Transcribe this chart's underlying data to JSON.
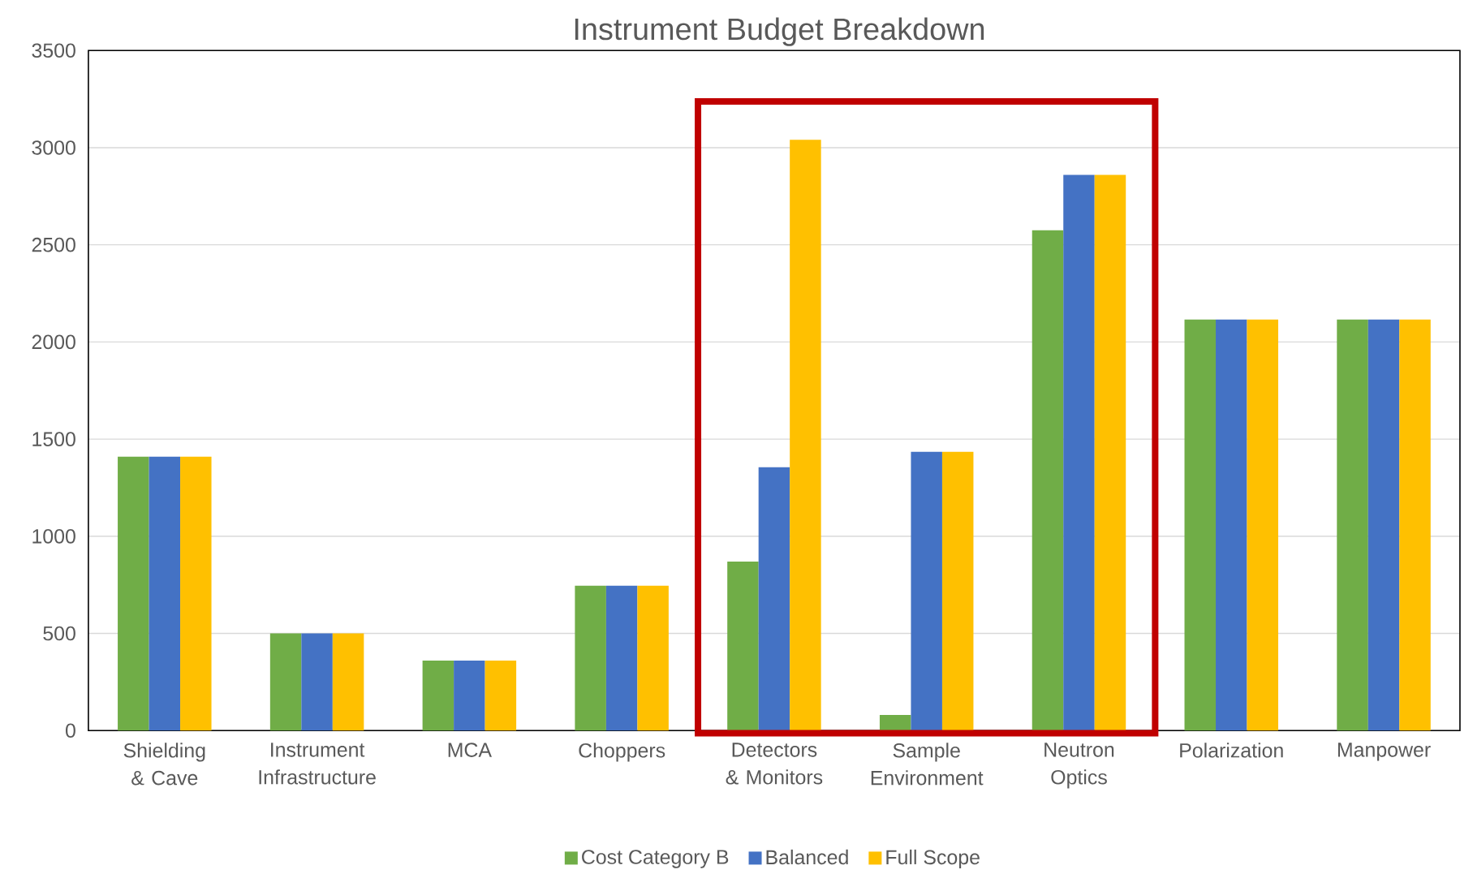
{
  "chart_data": {
    "type": "bar",
    "title": "Instrument Budget Breakdown",
    "categories": [
      "Shielding & Cave",
      "Instrument Infrastructure",
      "MCA",
      "Choppers",
      "Detectors & Monitors",
      "Sample Environment",
      "Neutron Optics",
      "Polarization",
      "Manpower"
    ],
    "series": [
      {
        "name": "Cost Category B",
        "color": "#70ad47",
        "values": [
          1410,
          500,
          360,
          745,
          870,
          80,
          2575,
          2115,
          2115
        ]
      },
      {
        "name": "Balanced",
        "color": "#4472c4",
        "values": [
          1410,
          500,
          360,
          745,
          1355,
          1435,
          2860,
          2115,
          2115
        ]
      },
      {
        "name": "Full Scope",
        "color": "#ffc000",
        "values": [
          1410,
          500,
          360,
          745,
          3040,
          1435,
          2860,
          2115,
          2115
        ]
      }
    ],
    "ylim": [
      0,
      3500
    ],
    "yticks": [
      0,
      500,
      1000,
      1500,
      2000,
      2500,
      3000,
      3500
    ],
    "grid": "y",
    "legend": "bottom"
  }
}
